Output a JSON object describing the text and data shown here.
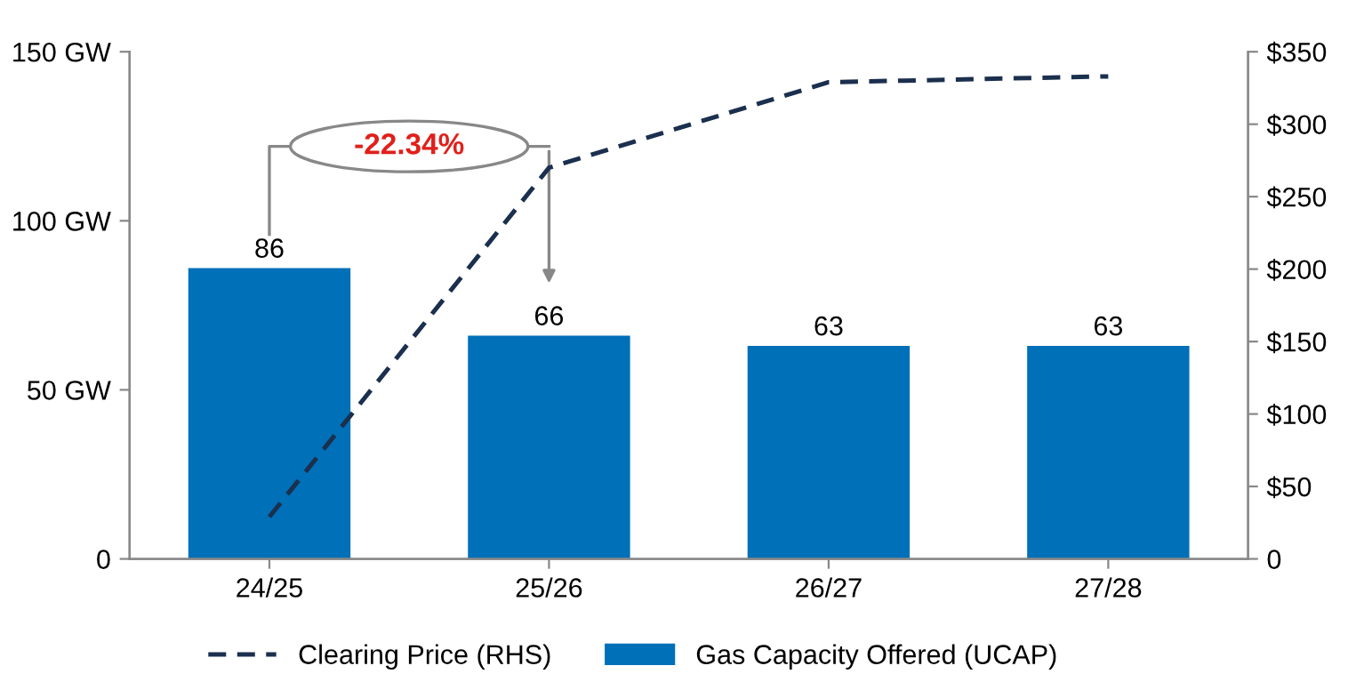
{
  "chart_data": {
    "type": "bar",
    "categories": [
      "24/25",
      "25/26",
      "26/27",
      "27/28"
    ],
    "series": [
      {
        "name": "Clearing Price (RHS)",
        "type": "line",
        "axis": "y2",
        "color": "#1b2f4e",
        "line_style": "dashed",
        "values": [
          29,
          270,
          329,
          333
        ]
      },
      {
        "name": "Gas Capacity Offered (UCAP)",
        "color": "#0070b8",
        "values": [
          86,
          66,
          63,
          63
        ],
        "data_labels": true
      }
    ],
    "ylim": [
      0,
      150
    ],
    "yticks": [
      0,
      {
        "value": 50,
        "label": "50 GW"
      },
      {
        "value": 100,
        "label": "100 GW"
      },
      {
        "value": 150,
        "label": "150 GW"
      }
    ],
    "y2lim": [
      0,
      350
    ],
    "y2ticks": [
      0,
      {
        "value": 50,
        "label": "$50"
      },
      {
        "value": 100,
        "label": "$100"
      },
      {
        "value": 150,
        "label": "$150"
      },
      {
        "value": 200,
        "label": "$200"
      },
      {
        "value": 250,
        "label": "$250"
      },
      {
        "value": 300,
        "label": "$300"
      },
      {
        "value": 350,
        "label": "$350"
      }
    ],
    "annotations": [
      "-22.34%"
    ],
    "legend": "bottom",
    "grid": false
  }
}
